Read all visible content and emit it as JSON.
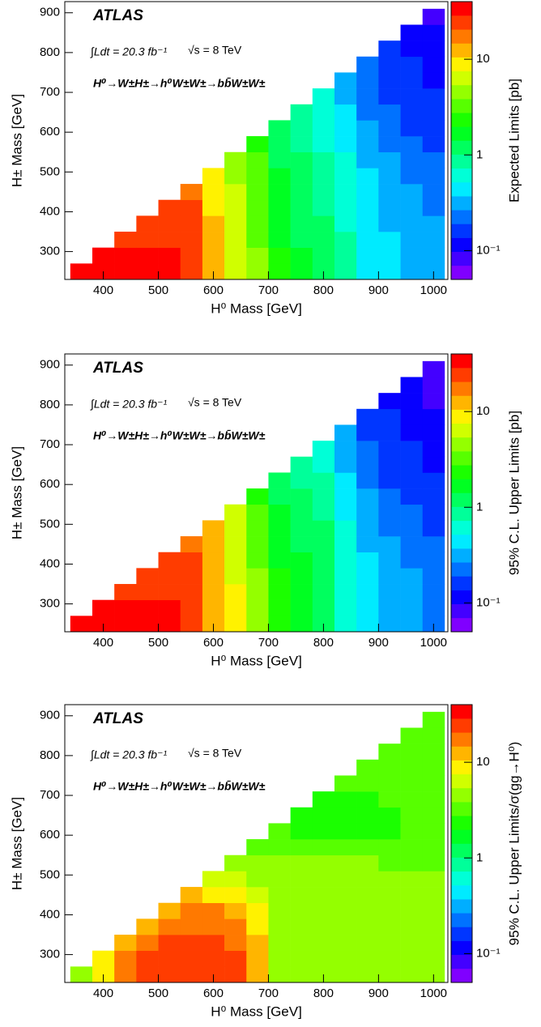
{
  "chart_data": [
    {
      "type": "heatmap",
      "xlabel": "H⁰ Mass [GeV]",
      "ylabel": "H± Mass [GeV]",
      "zlabel": "Expected Limits [pb]",
      "annotations": {
        "experiment": "ATLAS",
        "lumi": "∫Ldt = 20.3 fb⁻¹",
        "energy": "√s = 8 TeV",
        "process": "H⁰→W±H±→h⁰W±W±→bb̄W±W±"
      },
      "x_bins": [
        340,
        380,
        420,
        460,
        500,
        540,
        580,
        620,
        660,
        700,
        740,
        780,
        820,
        860,
        900,
        940,
        980,
        1020
      ],
      "y_bins": [
        230,
        270,
        310,
        350,
        390,
        430,
        470,
        510,
        550,
        590,
        630,
        670,
        710,
        750,
        790,
        830,
        870,
        910
      ],
      "values": [
        [
          30,
          30,
          30,
          30,
          30,
          25,
          12,
          7,
          4,
          2,
          1.5,
          1.2,
          0.8,
          0.5,
          0.4,
          0.35,
          0.3
        ],
        [
          null,
          30,
          30,
          30,
          30,
          25,
          12,
          7,
          4,
          2,
          1.5,
          1.2,
          0.8,
          0.5,
          0.4,
          0.35,
          0.3
        ],
        [
          null,
          null,
          28,
          28,
          28,
          24,
          11,
          6.6,
          3.8,
          1.9,
          1.4,
          1.1,
          0.76,
          0.48,
          0.38,
          0.33,
          0.29
        ],
        [
          null,
          null,
          null,
          27,
          27,
          22,
          11,
          6.3,
          3.6,
          1.8,
          1.4,
          1.1,
          0.72,
          0.45,
          0.36,
          0.32,
          0.27
        ],
        [
          null,
          null,
          null,
          null,
          26,
          21,
          10,
          6,
          3.4,
          1.7,
          1.3,
          1,
          0.68,
          0.43,
          0.34,
          0.3,
          0.26
        ],
        [
          null,
          null,
          null,
          null,
          null,
          20,
          9.6,
          5.6,
          3.2,
          1.6,
          1.2,
          0.96,
          0.64,
          0.4,
          0.32,
          0.28,
          0.24
        ],
        [
          null,
          null,
          null,
          null,
          null,
          null,
          9,
          5.3,
          3,
          1.5,
          1.1,
          0.9,
          0.6,
          0.38,
          0.3,
          0.26,
          0.23
        ],
        [
          null,
          null,
          null,
          null,
          null,
          null,
          null,
          4.9,
          2.8,
          1.4,
          1.1,
          0.84,
          0.56,
          0.35,
          0.28,
          0.25,
          0.21
        ],
        [
          null,
          null,
          null,
          null,
          null,
          null,
          null,
          null,
          2.4,
          1.2,
          0.9,
          0.72,
          0.48,
          0.3,
          0.24,
          0.21,
          0.18
        ],
        [
          null,
          null,
          null,
          null,
          null,
          null,
          null,
          null,
          null,
          1.1,
          0.83,
          0.66,
          0.44,
          0.28,
          0.22,
          0.19,
          0.17
        ],
        [
          null,
          null,
          null,
          null,
          null,
          null,
          null,
          null,
          null,
          null,
          0.75,
          0.6,
          0.4,
          0.25,
          0.2,
          0.18,
          0.15
        ],
        [
          null,
          null,
          null,
          null,
          null,
          null,
          null,
          null,
          null,
          null,
          null,
          0.54,
          0.36,
          0.23,
          0.18,
          0.16,
          0.14
        ],
        [
          null,
          null,
          null,
          null,
          null,
          null,
          null,
          null,
          null,
          null,
          null,
          null,
          0.34,
          0.21,
          0.17,
          0.15,
          0.13
        ],
        [
          null,
          null,
          null,
          null,
          null,
          null,
          null,
          null,
          null,
          null,
          null,
          null,
          null,
          0.2,
          0.16,
          0.14,
          0.12
        ],
        [
          null,
          null,
          null,
          null,
          null,
          null,
          null,
          null,
          null,
          null,
          null,
          null,
          null,
          null,
          0.15,
          0.13,
          0.11
        ],
        [
          null,
          null,
          null,
          null,
          null,
          null,
          null,
          null,
          null,
          null,
          null,
          null,
          null,
          null,
          null,
          0.12,
          0.1
        ],
        [
          null,
          null,
          null,
          null,
          null,
          null,
          null,
          null,
          null,
          null,
          null,
          null,
          null,
          null,
          null,
          null,
          0.09
        ]
      ],
      "xlim": [
        330,
        1026
      ],
      "ylim": [
        230,
        928
      ],
      "xticks": [
        400,
        500,
        600,
        700,
        800,
        900,
        1000
      ],
      "yticks": [
        300,
        400,
        500,
        600,
        700,
        800,
        900
      ],
      "zlim": [
        0.05,
        40
      ],
      "zscale": "log",
      "zticks": [
        {
          "value": 0.1,
          "label": "10⁻¹"
        },
        1,
        10
      ],
      "colormap": "rainbow",
      "levels": 20
    },
    {
      "type": "heatmap",
      "xlabel": "H⁰ Mass [GeV]",
      "ylabel": "H± Mass [GeV]",
      "zlabel": "95% C.L. Upper Limits [pb]",
      "annotations": {
        "experiment": "ATLAS",
        "lumi": "∫Ldt = 20.3 fb⁻¹",
        "energy": "√s = 8 TeV",
        "process": "H⁰→W±H±→h⁰W±W±→bb̄W±W±"
      },
      "x_bins": [
        340,
        380,
        420,
        460,
        500,
        540,
        580,
        620,
        660,
        700,
        740,
        780,
        820,
        860,
        900,
        940,
        980,
        1020
      ],
      "y_bins": [
        230,
        270,
        310,
        350,
        390,
        430,
        470,
        510,
        550,
        590,
        630,
        670,
        710,
        750,
        790,
        830,
        870,
        910
      ],
      "values": [
        [
          30,
          30,
          30,
          30,
          30,
          25,
          14,
          8,
          4.5,
          2.2,
          1.8,
          1.4,
          0.7,
          0.45,
          0.35,
          0.3,
          0.25
        ],
        [
          null,
          30,
          30,
          30,
          30,
          25,
          14,
          8,
          4.5,
          2.2,
          1.8,
          1.4,
          0.7,
          0.45,
          0.35,
          0.3,
          0.25
        ],
        [
          null,
          null,
          28,
          28,
          28,
          24,
          13,
          7.6,
          4.3,
          2.1,
          1.7,
          1.3,
          0.67,
          0.43,
          0.33,
          0.29,
          0.24
        ],
        [
          null,
          null,
          null,
          27,
          27,
          22,
          13,
          7.2,
          4,
          2,
          1.6,
          1.3,
          0.63,
          0.41,
          0.32,
          0.27,
          0.23
        ],
        [
          null,
          null,
          null,
          null,
          26,
          21,
          12,
          6.8,
          3.8,
          1.9,
          1.5,
          1.2,
          0.6,
          0.38,
          0.3,
          0.26,
          0.21
        ],
        [
          null,
          null,
          null,
          null,
          null,
          20,
          11,
          6.4,
          3.6,
          1.8,
          1.4,
          1.1,
          0.56,
          0.36,
          0.28,
          0.24,
          0.2
        ],
        [
          null,
          null,
          null,
          null,
          null,
          null,
          11,
          6,
          3.4,
          1.7,
          1.4,
          1.1,
          0.53,
          0.34,
          0.26,
          0.23,
          0.19
        ],
        [
          null,
          null,
          null,
          null,
          null,
          null,
          null,
          5.6,
          3.2,
          1.5,
          1.3,
          0.98,
          0.49,
          0.32,
          0.25,
          0.21,
          0.18
        ],
        [
          null,
          null,
          null,
          null,
          null,
          null,
          null,
          null,
          2.7,
          1.3,
          1.1,
          0.84,
          0.42,
          0.27,
          0.21,
          0.18,
          0.15
        ],
        [
          null,
          null,
          null,
          null,
          null,
          null,
          null,
          null,
          null,
          1.2,
          0.99,
          0.77,
          0.39,
          0.25,
          0.19,
          0.17,
          0.14
        ],
        [
          null,
          null,
          null,
          null,
          null,
          null,
          null,
          null,
          null,
          null,
          0.9,
          0.7,
          0.35,
          0.23,
          0.18,
          0.15,
          0.13
        ],
        [
          null,
          null,
          null,
          null,
          null,
          null,
          null,
          null,
          null,
          null,
          null,
          0.63,
          0.32,
          0.2,
          0.16,
          0.14,
          0.11
        ],
        [
          null,
          null,
          null,
          null,
          null,
          null,
          null,
          null,
          null,
          null,
          null,
          null,
          0.29,
          0.19,
          0.15,
          0.13,
          0.11
        ],
        [
          null,
          null,
          null,
          null,
          null,
          null,
          null,
          null,
          null,
          null,
          null,
          null,
          null,
          0.18,
          0.14,
          0.12,
          0.1
        ],
        [
          null,
          null,
          null,
          null,
          null,
          null,
          null,
          null,
          null,
          null,
          null,
          null,
          null,
          null,
          0.13,
          0.11,
          0.095
        ],
        [
          null,
          null,
          null,
          null,
          null,
          null,
          null,
          null,
          null,
          null,
          null,
          null,
          null,
          null,
          null,
          0.1,
          0.088
        ],
        [
          null,
          null,
          null,
          null,
          null,
          null,
          null,
          null,
          null,
          null,
          null,
          null,
          null,
          null,
          null,
          null,
          0.075
        ]
      ],
      "xlim": [
        330,
        1026
      ],
      "ylim": [
        230,
        928
      ],
      "xticks": [
        400,
        500,
        600,
        700,
        800,
        900,
        1000
      ],
      "yticks": [
        300,
        400,
        500,
        600,
        700,
        800,
        900
      ],
      "zlim": [
        0.05,
        40
      ],
      "zscale": "log",
      "zticks": [
        {
          "value": 0.1,
          "label": "10⁻¹"
        },
        1,
        10
      ],
      "colormap": "rainbow",
      "levels": 20
    },
    {
      "type": "heatmap",
      "xlabel": "H⁰ Mass [GeV]",
      "ylabel": "H± Mass [GeV]",
      "zlabel": "95% C.L. Upper Limits/σ(gg→H⁰)",
      "annotations": {
        "experiment": "ATLAS",
        "lumi": "∫Ldt = 20.3 fb⁻¹",
        "energy": "√s = 8 TeV",
        "process": "H⁰→W±H±→h⁰W±W±→bb̄W±W±"
      },
      "x_bins": [
        340,
        380,
        420,
        460,
        500,
        540,
        580,
        620,
        660,
        700,
        740,
        780,
        820,
        860,
        900,
        940,
        980,
        1020
      ],
      "y_bins": [
        230,
        270,
        310,
        350,
        390,
        430,
        470,
        510,
        550,
        590,
        630,
        670,
        710,
        750,
        790,
        830,
        870,
        910
      ],
      "values": [
        [
          5,
          10,
          15,
          25,
          25,
          25,
          25,
          25,
          12,
          5,
          5,
          5,
          5,
          5,
          5,
          5,
          5
        ],
        [
          null,
          10,
          20,
          25,
          25,
          25,
          25,
          25,
          12,
          5,
          5,
          5,
          5,
          5,
          5,
          5,
          5
        ],
        [
          null,
          null,
          12,
          20,
          25,
          25,
          25,
          20,
          12,
          5,
          5,
          5,
          5,
          5,
          5,
          5,
          5
        ],
        [
          null,
          null,
          null,
          12,
          20,
          20,
          20,
          15,
          10,
          5,
          5,
          5,
          5,
          5,
          5,
          5,
          5
        ],
        [
          null,
          null,
          null,
          null,
          12,
          15,
          15,
          12,
          8,
          5,
          5,
          5,
          5,
          5,
          5,
          5,
          5
        ],
        [
          null,
          null,
          null,
          null,
          null,
          12,
          10,
          8,
          6,
          5,
          5,
          5,
          5,
          5,
          5,
          5,
          5
        ],
        [
          null,
          null,
          null,
          null,
          null,
          null,
          7,
          6,
          5,
          5,
          4.5,
          4.5,
          4.5,
          4.5,
          4.5,
          4.5,
          4.5
        ],
        [
          null,
          null,
          null,
          null,
          null,
          null,
          null,
          5,
          4.5,
          4,
          4,
          4,
          4.5,
          4.5,
          3.5,
          3.5,
          3.5
        ],
        [
          null,
          null,
          null,
          null,
          null,
          null,
          null,
          null,
          3.5,
          3.5,
          3,
          3,
          3,
          3,
          3,
          3,
          3
        ],
        [
          null,
          null,
          null,
          null,
          null,
          null,
          null,
          null,
          null,
          3,
          2.5,
          2,
          2,
          2,
          2.5,
          3,
          3
        ],
        [
          null,
          null,
          null,
          null,
          null,
          null,
          null,
          null,
          null,
          null,
          2.5,
          2,
          2,
          2,
          2.5,
          3,
          3
        ],
        [
          null,
          null,
          null,
          null,
          null,
          null,
          null,
          null,
          null,
          null,
          null,
          2.5,
          2.5,
          2.5,
          3,
          3,
          3
        ],
        [
          null,
          null,
          null,
          null,
          null,
          null,
          null,
          null,
          null,
          null,
          null,
          null,
          3,
          3,
          3,
          3,
          3
        ],
        [
          null,
          null,
          null,
          null,
          null,
          null,
          null,
          null,
          null,
          null,
          null,
          null,
          null,
          3,
          3,
          3,
          3
        ],
        [
          null,
          null,
          null,
          null,
          null,
          null,
          null,
          null,
          null,
          null,
          null,
          null,
          null,
          null,
          3,
          3,
          3
        ],
        [
          null,
          null,
          null,
          null,
          null,
          null,
          null,
          null,
          null,
          null,
          null,
          null,
          null,
          null,
          null,
          3,
          3
        ],
        [
          null,
          null,
          null,
          null,
          null,
          null,
          null,
          null,
          null,
          null,
          null,
          null,
          null,
          null,
          null,
          null,
          3
        ]
      ],
      "xlim": [
        330,
        1026
      ],
      "ylim": [
        230,
        928
      ],
      "xticks": [
        400,
        500,
        600,
        700,
        800,
        900,
        1000
      ],
      "yticks": [
        300,
        400,
        500,
        600,
        700,
        800,
        900
      ],
      "zlim": [
        0.05,
        40
      ],
      "zscale": "log",
      "zticks": [
        {
          "value": 0.1,
          "label": "10⁻¹"
        },
        1,
        10
      ],
      "colormap": "rainbow",
      "levels": 20
    }
  ]
}
